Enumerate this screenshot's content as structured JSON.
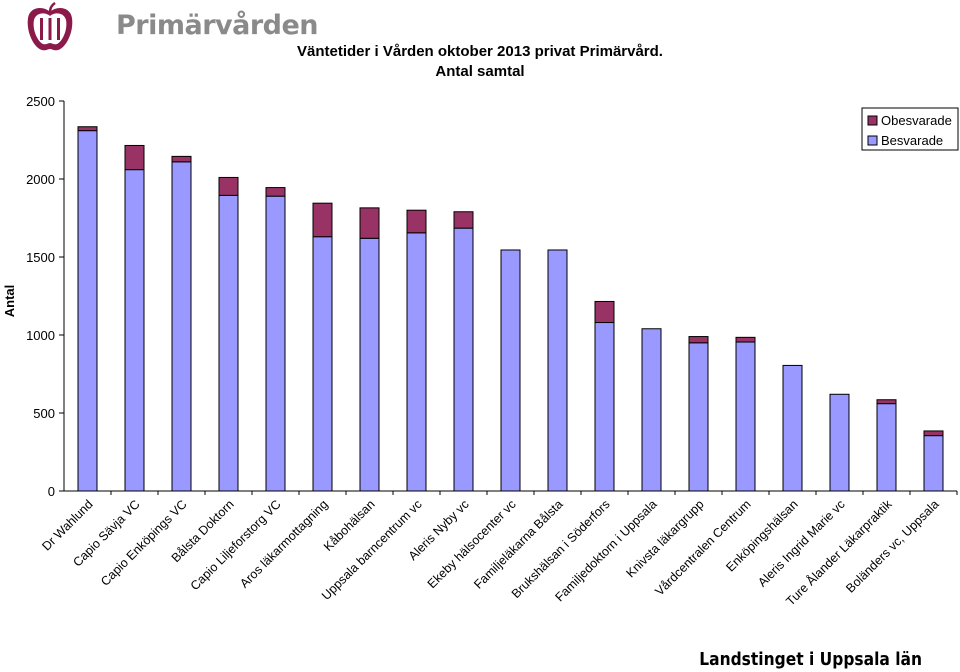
{
  "branding": {
    "logo_text": "Primärvården",
    "footer_text": "Landstinget i Uppsala län",
    "logo_color": "#8b1a4a",
    "logo_text_color": "#8a8a8a"
  },
  "chart_data": {
    "type": "bar",
    "stacked": true,
    "title": "Väntetider i Vården oktober 2013 privat Primärvård.",
    "subtitle": "Antal samtal",
    "xlabel": "",
    "ylabel": "Antal",
    "ylim": [
      0,
      2500
    ],
    "yticks": [
      0,
      500,
      1000,
      1500,
      2000,
      2500
    ],
    "grid": false,
    "legend_position": "top-right",
    "categories": [
      "Dr Wahlund",
      "Capio Sävja VC",
      "Capio Enköpings VC",
      "Bålsta Doktorn",
      "Capio Liljeforstorg VC",
      "Aros läkarmottagning",
      "Kåbohälsan",
      "Uppsala barncentrum vc",
      "Aleris Nyby vc",
      "Ekeby hälsocenter vc",
      "Familjeläkarna Bålsta",
      "Brukshälsan i Söderfors",
      "Familjedoktorn i Uppsala",
      "Knivsta läkargrupp",
      "Vårdcentralen Centrum",
      "Enköpingshälsan",
      "Aleris Ingrid Marie vc",
      "Ture Ålander Läkarpraktik",
      "Boländers vc, Uppsala"
    ],
    "series": [
      {
        "name": "Besvarade",
        "color": "#9999ff",
        "values": [
          2310,
          2060,
          2110,
          1895,
          1890,
          1630,
          1620,
          1655,
          1685,
          1545,
          1545,
          1080,
          1040,
          950,
          955,
          805,
          620,
          560,
          355
        ]
      },
      {
        "name": "Obesvarade",
        "color": "#993366",
        "values": [
          25,
          155,
          35,
          115,
          55,
          215,
          195,
          145,
          105,
          0,
          0,
          135,
          0,
          40,
          30,
          0,
          0,
          25,
          30
        ]
      }
    ],
    "legend_order": [
      "Obesvarade",
      "Besvarade"
    ]
  }
}
